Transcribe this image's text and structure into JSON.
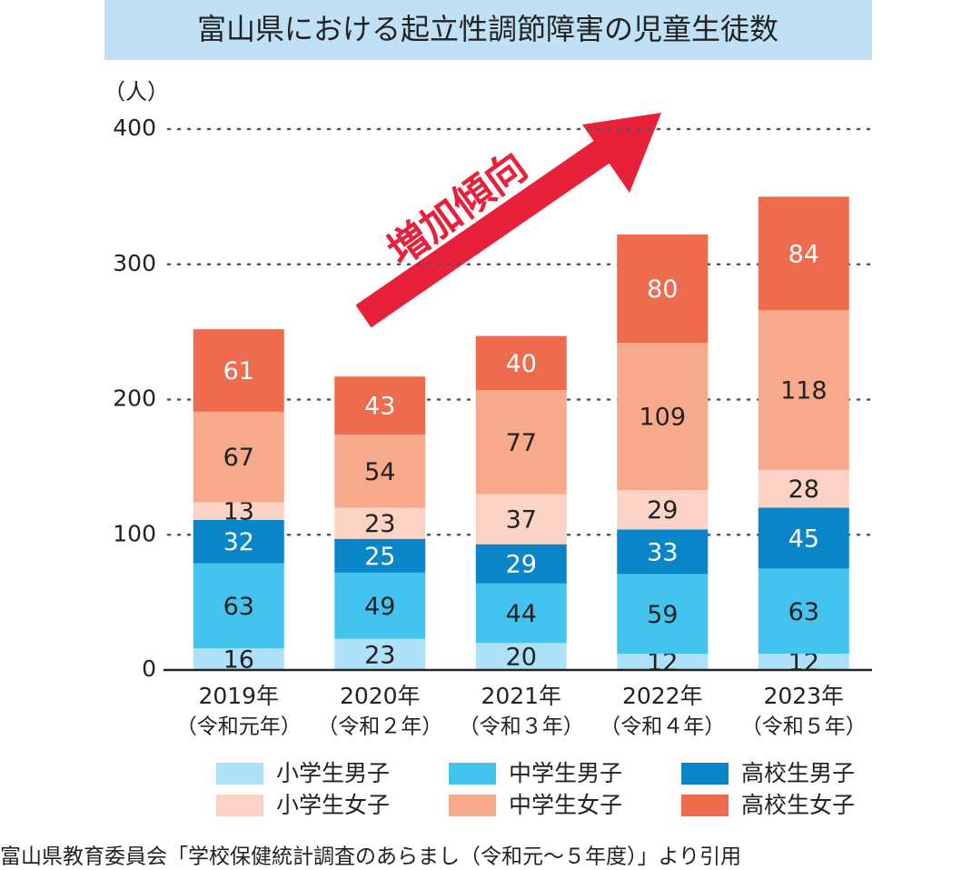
{
  "chart_data": {
    "type": "stacked_bar",
    "title": "富山県における起立性調節障害の児童生徒数",
    "y_unit_label": "（人）",
    "annotation": "増加傾向",
    "source": "富山県教育委員会「学校保健統計調査のあらまし（令和元～５年度）」より引用",
    "categories": [
      "2019年",
      "2020年",
      "2021年",
      "2022年",
      "2023年"
    ],
    "category_sublabels": [
      "（令和元年）",
      "（令和２年）",
      "（令和３年）",
      "（令和４年）",
      "（令和５年）"
    ],
    "series": [
      {
        "name": "小学生男子",
        "color": "#aee0f7",
        "label_color": "#222222",
        "values": [
          16,
          23,
          20,
          12,
          12
        ]
      },
      {
        "name": "中学生男子",
        "color": "#45c3ef",
        "label_color": "#222222",
        "values": [
          63,
          49,
          44,
          59,
          63
        ]
      },
      {
        "name": "高校生男子",
        "color": "#0a86c8",
        "label_color": "#ffffff",
        "values": [
          32,
          25,
          29,
          33,
          45
        ]
      },
      {
        "name": "小学生女子",
        "color": "#fbd3c4",
        "label_color": "#222222",
        "values": [
          13,
          23,
          37,
          29,
          28
        ]
      },
      {
        "name": "中学生女子",
        "color": "#f6a98b",
        "label_color": "#222222",
        "values": [
          67,
          54,
          77,
          109,
          118
        ]
      },
      {
        "name": "高校生女子",
        "color": "#ee6b4e",
        "label_color": "#ffffff",
        "values": [
          61,
          43,
          40,
          80,
          84
        ]
      }
    ],
    "ylim": [
      0,
      400
    ],
    "yticks": [
      0,
      100,
      200,
      300,
      400
    ],
    "grid": true
  }
}
